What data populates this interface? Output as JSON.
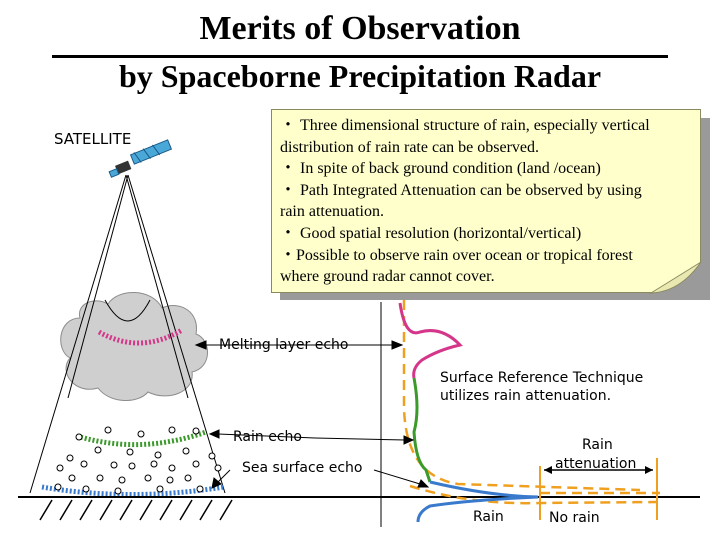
{
  "title_line1": "Merits of Observation",
  "title_line2": "by Spaceborne Precipitation Radar",
  "merits": [
    "・ Three dimensional structure of rain, especially vertical",
    "  distribution of rain rate can be observed.",
    "・ In spite of back ground condition (land /ocean)",
    "・ Path Integrated Attenuation can be observed by using",
    "  rain attenuation.",
    "・ Good spatial resolution (horizontal/vertical)",
    "・Possible to observe rain over ocean or tropical forest",
    "  where ground radar cannot cover."
  ],
  "labels": {
    "satellite": "SATELLITE",
    "melting_layer": "Melting layer echo",
    "rain_echo": "Rain echo",
    "sea_surface": "Sea surface echo",
    "srt_line1": "Surface Reference Technique",
    "srt_line2": "utilizes rain attenuation.",
    "rain_atten_line1": "Rain",
    "rain_atten_line2": "attenuation",
    "rain": "Rain",
    "no_rain": "No rain"
  },
  "colors": {
    "melting_layer": "#d4368a",
    "rain_echo": "#3a9a2a",
    "sea_surface": "#3a7acc",
    "dashed_profile": "#f0a020",
    "note_bg": "#ffffcc",
    "cloud": "#cfcfcf"
  },
  "icons": [
    "satellite-icon",
    "cloud-icon",
    "raindrop-icon"
  ]
}
